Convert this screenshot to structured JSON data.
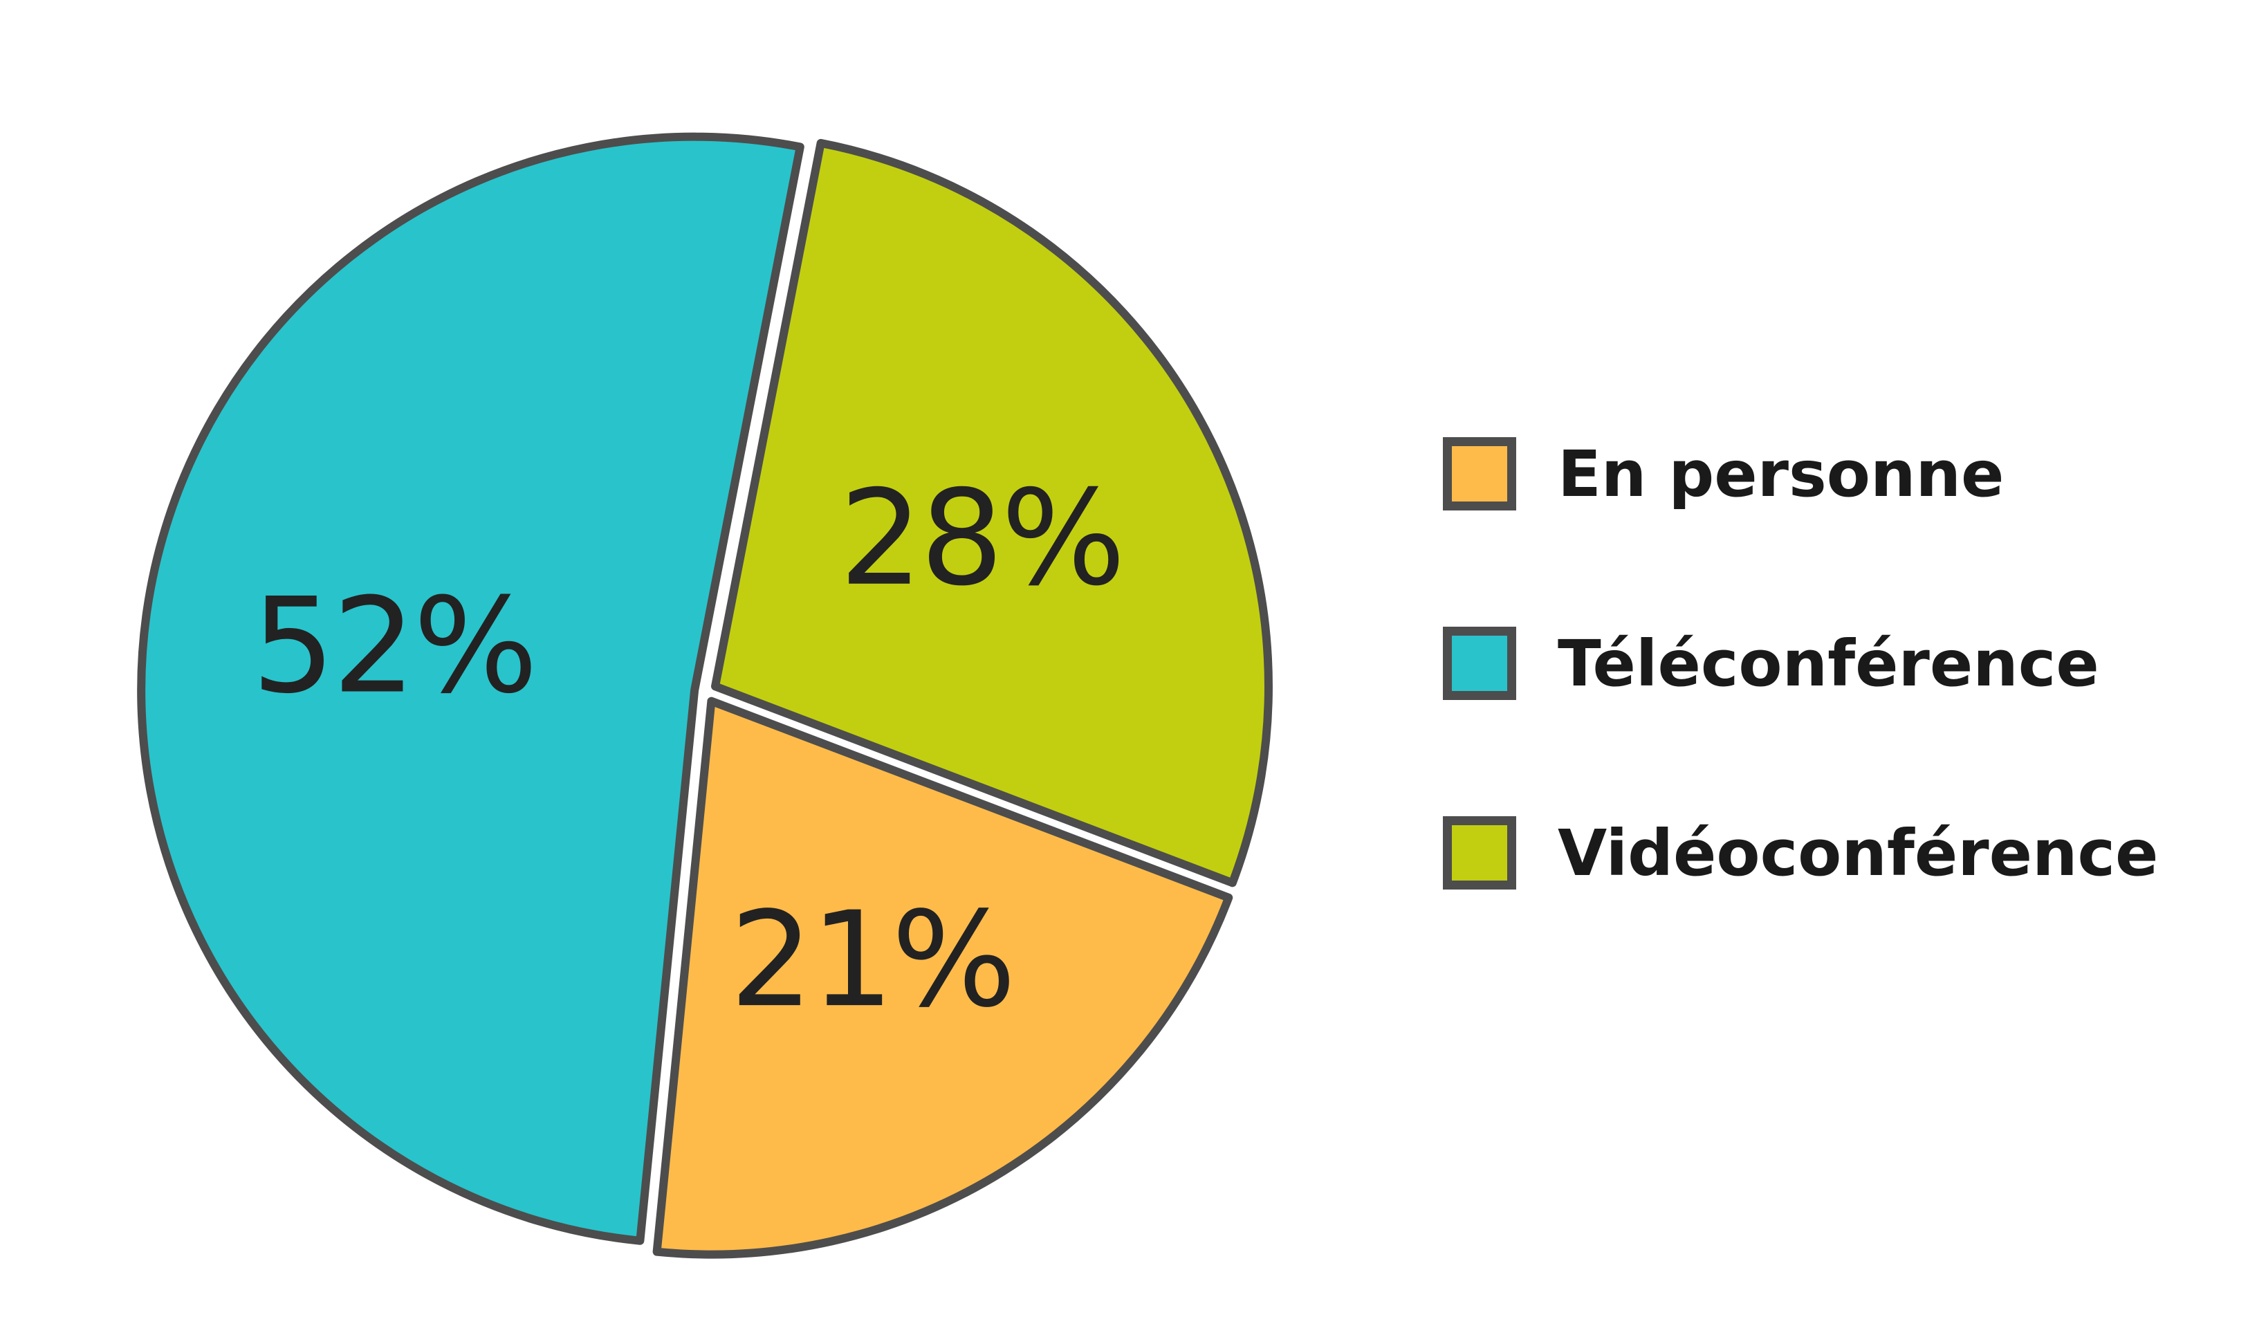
{
  "chart_data": {
    "type": "pie",
    "title": "",
    "slices": [
      {
        "name": "Vidéoconférence",
        "value": 28,
        "label": "28%",
        "color": "#c2cf10"
      },
      {
        "name": "En personne",
        "value": 21,
        "label": "21%",
        "color": "#ffbb4a"
      },
      {
        "name": "Téléconférence",
        "value": 52,
        "label": "52%",
        "color": "#29c3cb"
      }
    ],
    "legend": {
      "position": "right",
      "items": [
        {
          "label": "En personne",
          "color": "#ffbb4a"
        },
        {
          "label": "Téléconférence",
          "color": "#29c3cb"
        },
        {
          "label": "Vidéoconférence",
          "color": "#c2cf10"
        }
      ]
    },
    "stroke_color": "#4d4d4d",
    "exploded": true
  }
}
